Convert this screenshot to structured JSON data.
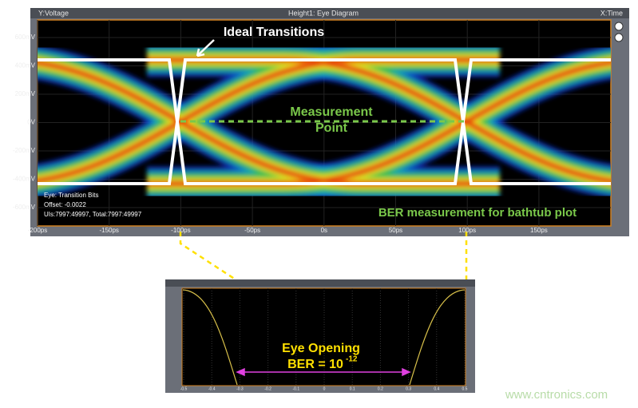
{
  "scope": {
    "y_label": "Y:Voltage",
    "title": "Height1: Eye Diagram",
    "x_label": "X:Time",
    "y_ticks": [
      "600mV",
      "400mV",
      "200mV",
      "0V",
      "-200mV",
      "-400mV",
      "-600mV"
    ],
    "x_ticks": [
      "-200ps",
      "-150ps",
      "-100ps",
      "-50ps",
      "0s",
      "50ps",
      "100ps",
      "150ps"
    ],
    "info": [
      "Eye: Transition Bits",
      "Offset: -0.0022",
      "UIs:7997:49997, Total:7997:49997"
    ]
  },
  "annotations": {
    "ideal": "Ideal Transitions",
    "measurement": [
      "Measurement",
      "Point"
    ],
    "ber_measurement": "BER measurement for bathtub plot"
  },
  "bathtub": {
    "x_ticks": [
      "-0.5",
      "-0.4",
      "-0.3",
      "-0.2",
      "-0.1",
      "0",
      "0.1",
      "0.2",
      "0.3",
      "0.4",
      "0.5"
    ],
    "eye_opening": "Eye Opening",
    "ber": "BER = 10",
    "ber_exponent": "-12"
  },
  "watermark": "www.cntronics.com"
}
